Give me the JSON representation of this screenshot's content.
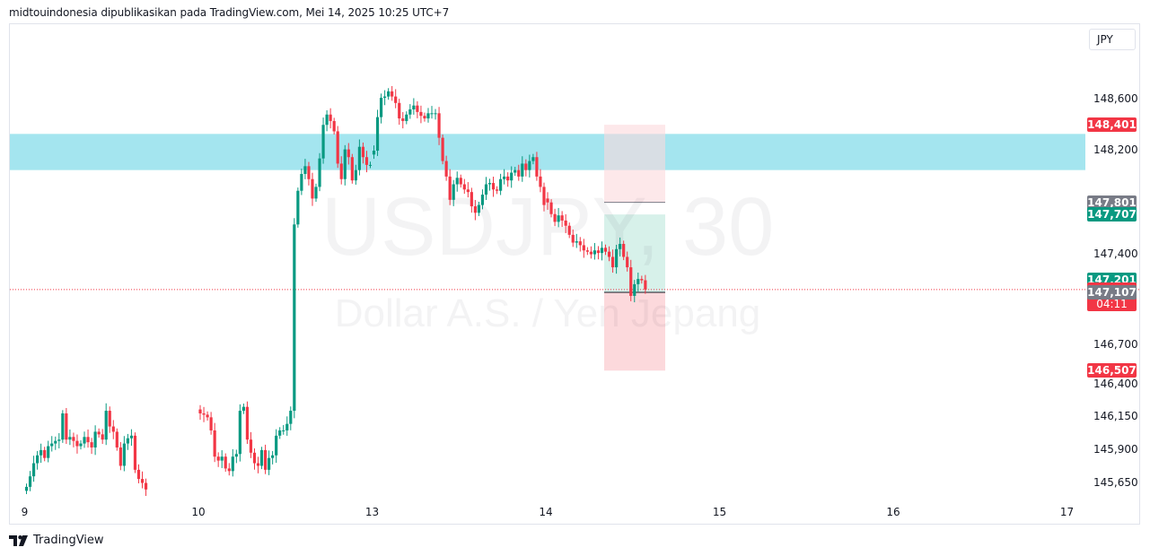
{
  "header": {
    "text": "midtouindonesia dipublikasikan pada TradingView.com, Mei 14, 2025 10:25 UTC+7"
  },
  "currency_button": {
    "label": "JPY"
  },
  "brand": {
    "label": "TradingView",
    "icon": "tradingview-logo-icon"
  },
  "watermark": {
    "symbol": "USDJPY, 30",
    "description": "Dollar A.S. / Yen Jepang"
  },
  "colors": {
    "up": "#089981",
    "down": "#f23645",
    "zone": "#a4e5ef",
    "target_zone": "#d7f1ea",
    "stop_zone": "#fcd9dc",
    "badge_gray": "#787b86",
    "badge_green": "#089981",
    "badge_red": "#f23645"
  },
  "chart_data": {
    "type": "candlestick",
    "symbol": "USDJPY",
    "timeframe": "30",
    "x_ticks": [
      "9",
      "10",
      "13",
      "14",
      "15",
      "16",
      "17"
    ],
    "y_ticks": [
      "148,600",
      "148,200",
      "147,400",
      "146,700",
      "146,400",
      "146,150",
      "145,900",
      "145,650"
    ],
    "y_axis_scale": "log",
    "ylim": [
      145.55,
      148.9
    ],
    "zone": {
      "low": 148.05,
      "high": 148.33
    },
    "position": {
      "direction": "long",
      "entry": 147.107,
      "target_shaded": 147.707,
      "stop": 146.507,
      "line": 147.801,
      "top_shaded": 148.401
    },
    "price_badges": [
      {
        "value": "148,401",
        "color": "red"
      },
      {
        "value": "147,801",
        "color": "gray"
      },
      {
        "value": "147,707",
        "color": "green"
      },
      {
        "value": "147,201",
        "color": "green"
      },
      {
        "value": "147,129",
        "sub": "04:11",
        "color": "red",
        "current": true
      },
      {
        "value": "147,107",
        "color": "gray"
      },
      {
        "value": "146,507",
        "color": "red"
      }
    ],
    "current_price": 147.129,
    "segments": [
      {
        "label": "9 May (partial)",
        "start_index": 0,
        "closes": [
          145.62,
          145.7,
          145.8,
          145.86,
          145.9,
          145.84,
          145.93,
          145.95,
          145.97,
          145.98,
          146.18,
          145.98,
          146.0,
          145.97,
          145.93,
          145.95,
          146.0,
          145.96,
          145.92,
          146.04,
          146.02,
          145.98,
          146.2,
          146.08,
          146.04,
          145.92,
          145.78,
          145.95,
          145.99,
          146.01,
          145.75,
          145.68,
          145.65,
          145.6
        ]
      },
      {
        "label": "12 May",
        "start_index": 48,
        "closes": [
          146.18,
          146.17,
          146.15,
          146.05,
          145.85,
          145.82,
          145.85,
          145.76,
          145.74,
          145.85,
          145.87,
          146.2,
          146.23,
          145.98,
          145.88,
          145.8,
          145.78,
          145.9,
          145.75,
          145.84,
          145.86,
          146.01,
          146.05,
          146.05,
          146.1,
          146.2,
          147.63,
          147.89,
          148.02,
          148.08,
          147.98,
          147.83,
          147.92,
          148.14,
          148.4,
          148.48,
          148.43,
          148.35,
          148.1,
          147.98,
          148.21,
          148.15,
          147.97,
          148.05,
          148.23,
          148.15,
          148.09,
          148.09
        ]
      },
      {
        "label": "13 May",
        "start_index": 96,
        "closes": [
          148.2,
          148.46,
          148.61,
          148.62,
          148.66,
          148.62,
          148.57,
          148.45,
          148.43,
          148.48,
          148.52,
          148.55,
          148.5,
          148.47,
          148.45,
          148.49,
          148.49,
          148.49,
          148.3,
          148.12,
          148.0,
          147.82,
          147.94,
          147.99,
          147.94,
          147.9,
          147.88,
          147.77,
          147.72,
          147.78,
          147.86,
          147.94,
          147.95,
          147.9,
          147.89,
          147.98,
          148.0,
          147.97,
          148.03,
          148.05,
          148.0,
          148.1,
          148.05,
          148.12,
          148.15,
          148.0,
          147.92,
          147.78
        ]
      },
      {
        "label": "14 May (partial)",
        "start_index": 144,
        "closes": [
          147.8,
          147.71,
          147.65,
          147.7,
          147.66,
          147.62,
          147.55,
          147.49,
          147.5,
          147.47,
          147.43,
          147.42,
          147.4,
          147.43,
          147.41,
          147.45,
          147.42,
          147.38,
          147.3,
          147.44,
          147.48,
          147.38,
          147.3,
          147.08,
          147.17,
          147.21,
          147.2,
          147.129
        ]
      }
    ]
  }
}
